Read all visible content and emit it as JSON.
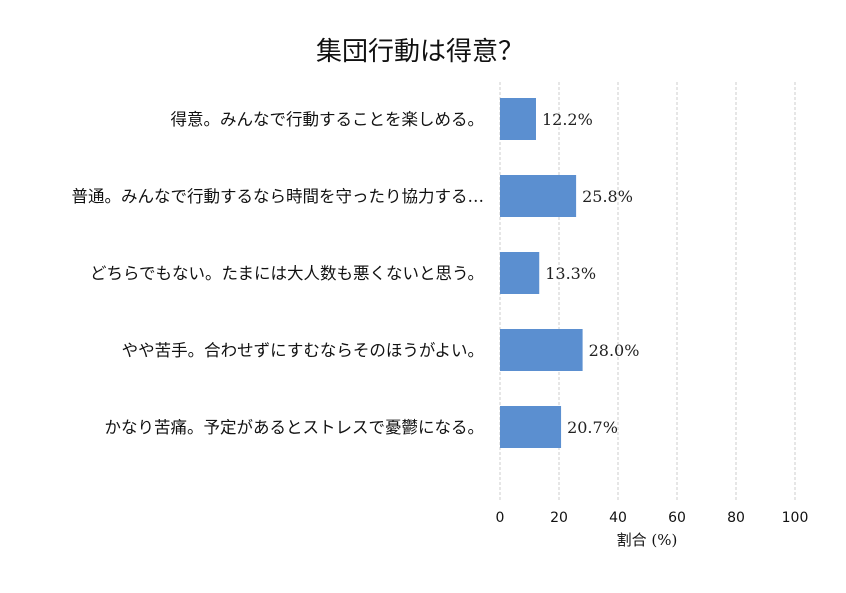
{
  "chart_data": {
    "type": "bar",
    "orientation": "horizontal",
    "title": "集団行動は得意？",
    "xlabel": "割合 (%)",
    "ylabel": "",
    "xlim": [
      0,
      100
    ],
    "xticks": [
      "0",
      "20",
      "40",
      "60",
      "80",
      "100"
    ],
    "grid": true,
    "bar_color": "#5b8fd0",
    "categories": [
      "得意。みんなで行動することを楽しめる。",
      "普通。みんなで行動するなら時間を守ったり協力する…",
      "どちらでもない。たまには大人数も悪くないと思う。",
      "やや苦手。合わせずにすむならそのほうがよい。",
      "かなり苦痛。予定があるとストレスで憂鬱になる。"
    ],
    "values": [
      12.2,
      25.8,
      13.3,
      28.0,
      20.7
    ],
    "data_labels": [
      "12.2%",
      "25.8%",
      "13.3%",
      "28.0%",
      "20.7%"
    ]
  }
}
